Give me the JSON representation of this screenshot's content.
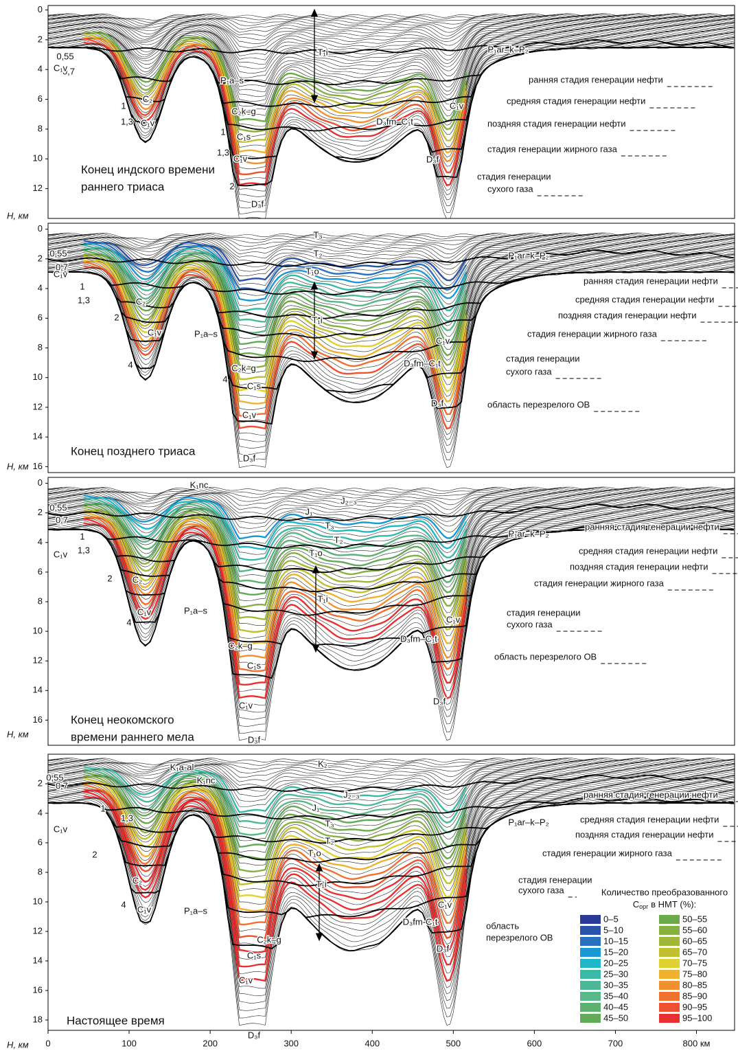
{
  "x_axis": {
    "xlim": [
      0,
      847
    ],
    "xticks": [
      0,
      100,
      200,
      300,
      400,
      500,
      600,
      700,
      {
        "value": 800,
        "label": "800 км"
      }
    ]
  },
  "y_axis_label": "H, км",
  "panels": [
    {
      "title": [
        "Конец индского времени",
        "раннего триаса"
      ],
      "ylim": [
        -0.3,
        14
      ],
      "yticks": [
        0,
        2,
        4,
        6,
        8,
        10,
        12
      ],
      "labels": [
        "T₁i",
        "P₁ar–k–P₂",
        "0,55",
        "0,7",
        "C₁v",
        "C₂",
        "P₁a–s",
        "C₂k–g",
        "1",
        "1,3",
        "C₁v",
        "D₃fm–C₁t",
        "C₁v",
        "1",
        "C₁s",
        "1,3",
        "C₁v",
        "D₃f",
        "2",
        "D₃f"
      ],
      "stages": [
        "ранняя стадия генерации нефти",
        "средняя стадия генерации нефти",
        "поздняя стадия генерации нефти",
        "стадия генерации жирного газа",
        "стадия генерации",
        "сухого газа"
      ]
    },
    {
      "title": [
        "Конец позднего триаса"
      ],
      "ylim": [
        -0.4,
        16.4
      ],
      "yticks": [
        0,
        2,
        4,
        6,
        8,
        10,
        12,
        14,
        16
      ],
      "labels": [
        "T₃",
        "T₂",
        "P₁ar–k–P₂",
        "T₁o",
        "0,55",
        "0,7",
        "C₁v",
        "1",
        "1,3",
        "C₂",
        "2",
        "C₁v",
        "P₁a–s",
        "T₁i",
        "C₁v",
        "D₃fm–C₁t",
        "C₂k–g",
        "4",
        "4",
        "C₁s",
        "D₃f",
        "C₁v",
        "D₃f"
      ],
      "stages": [
        "ранняя стадия генерации нефти",
        "средняя стадия генерации нефти",
        "поздняя стадия генерации нефти",
        "стадия генерации жирного газа",
        "стадия генерации",
        "сухого газа",
        "область перезрелого ОВ"
      ]
    },
    {
      "title": [
        "Конец неокомского",
        "времени раннего мела"
      ],
      "ylim": [
        -0.4,
        17.7
      ],
      "yticks": [
        0,
        2,
        4,
        6,
        8,
        10,
        12,
        14,
        16
      ],
      "labels": [
        "K₁nc",
        "J₂₋₃",
        "J₁",
        "0,55",
        "0,7",
        "T₃",
        "P₁ar–k–P₂",
        "T₂",
        "1",
        "C₁v",
        "1,3",
        "T₁o",
        "2",
        "C₂",
        "T₁i",
        "C₁v",
        "P₁a–s",
        "4",
        "C₁v",
        "D₃fm–C₁t",
        "C₂k–g",
        "C₁s",
        "D₃f",
        "C₁v",
        "D₃f"
      ],
      "stages": [
        "ранняя стадия генерации нефти",
        "средняя стадия генерации нефти",
        "поздняя стадия генерации нефти",
        "стадия генерации жирного газа",
        "стадия генерации",
        "сухого газа",
        "область перезрелого ОВ"
      ]
    },
    {
      "title": [
        "Настоящее время"
      ],
      "ylim": [
        0,
        18.7
      ],
      "yticks": [
        2,
        4,
        6,
        8,
        10,
        12,
        14,
        16,
        18
      ],
      "labels": [
        "K₁a-al",
        "K₂",
        "0,55",
        "K₁nc",
        "0,7",
        "J₂₋₃",
        "J₁",
        "1",
        "1,3",
        "T₃",
        "P₁ar–k–P₂",
        "C₁v",
        "T₂",
        "2",
        "T₁o",
        "C₂",
        "T₁i",
        "4",
        "C₁v",
        "P₁a–s",
        "C₁v",
        "D₃fm-C₁t",
        "C₂k–g",
        "C₁s",
        "D₃f",
        "C₁v",
        "D₃f"
      ],
      "stages": [
        "ранняя стадия генерации нефти",
        "средняя стадия генерации нефти",
        "поздняя стадия генерации нефти",
        "стадия генерации жирного газа",
        "стадия генерации",
        "сухого газа",
        "область",
        "перезрелого ОВ"
      ]
    }
  ],
  "legend": {
    "title_line1": "Количество преобразованного",
    "title_c": "C",
    "title_sub": "орг",
    "title_rest": " в НМТ (%):",
    "items": [
      {
        "label": "0–5",
        "color": "#2b3a98"
      },
      {
        "label": "5–10",
        "color": "#2a52a8"
      },
      {
        "label": "10–15",
        "color": "#2a70c0"
      },
      {
        "label": "15–20",
        "color": "#1a98d4"
      },
      {
        "label": "20–25",
        "color": "#20b8c8"
      },
      {
        "label": "25–30",
        "color": "#3ab8a8"
      },
      {
        "label": "30–35",
        "color": "#4cb898"
      },
      {
        "label": "35–40",
        "color": "#58b888"
      },
      {
        "label": "40–45",
        "color": "#5cb070"
      },
      {
        "label": "45–50",
        "color": "#60aa58"
      },
      {
        "label": "50–55",
        "color": "#6aaa48"
      },
      {
        "label": "55–60",
        "color": "#86b040"
      },
      {
        "label": "60–65",
        "color": "#a0b838"
      },
      {
        "label": "65–70",
        "color": "#c0c030"
      },
      {
        "label": "70–75",
        "color": "#e0d030"
      },
      {
        "label": "75–80",
        "color": "#f0b030"
      },
      {
        "label": "80–85",
        "color": "#f09030"
      },
      {
        "label": "85–90",
        "color": "#f07030"
      },
      {
        "label": "90–95",
        "color": "#ee5030"
      },
      {
        "label": "95–100",
        "color": "#e83030"
      }
    ]
  }
}
